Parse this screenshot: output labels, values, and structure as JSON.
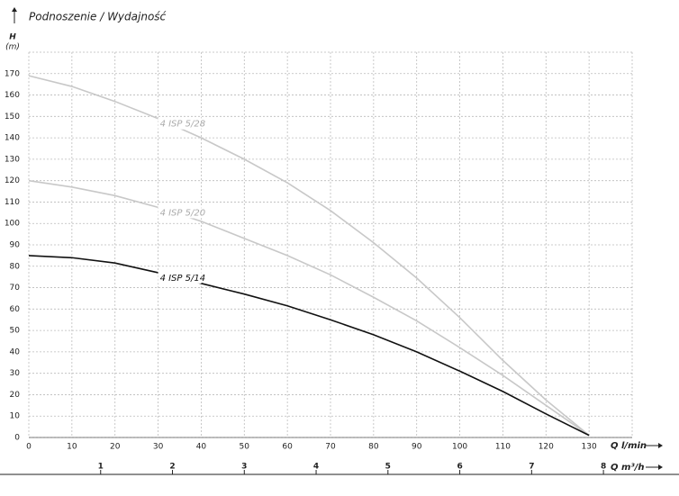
{
  "chart_data": {
    "type": "line",
    "title": "Podnoszenie / Wydajność",
    "y_label": "H",
    "y_unit": "(m)",
    "x_label": "Q l/min",
    "x2_label": "Q m³/h",
    "x": [
      0,
      10,
      20,
      30,
      40,
      50,
      60,
      70,
      80,
      90,
      100,
      110,
      120,
      130
    ],
    "series": [
      {
        "name": "4 ISP 5/28",
        "color": "#c8c8c8",
        "values": [
          169,
          164,
          157,
          149,
          140,
          130,
          119,
          106,
          91,
          74.5,
          56,
          36,
          17.5,
          1
        ]
      },
      {
        "name": "4 ISP 5/20",
        "color": "#c8c8c8",
        "values": [
          120,
          117,
          113,
          107.5,
          101,
          93,
          85,
          76,
          65.5,
          54.5,
          42,
          29,
          15,
          1
        ]
      },
      {
        "name": "4 ISP 5/14",
        "color": "#111111",
        "values": [
          85,
          84,
          81.5,
          77,
          72,
          67,
          61.5,
          55,
          48,
          40,
          31,
          21.5,
          11,
          1
        ]
      }
    ],
    "xlim": [
      0,
      140
    ],
    "xticks": [
      0,
      10,
      20,
      30,
      40,
      50,
      60,
      70,
      80,
      90,
      100,
      110,
      120,
      130
    ],
    "ylim": [
      0,
      180
    ],
    "yticks": [
      0,
      10,
      20,
      30,
      40,
      50,
      60,
      70,
      80,
      90,
      100,
      110,
      120,
      130,
      140,
      150,
      160,
      170
    ],
    "x2lim": [
      0,
      8.4
    ],
    "x2ticks": [
      1,
      2,
      3,
      4,
      5,
      6,
      7,
      8
    ],
    "grid": true
  }
}
